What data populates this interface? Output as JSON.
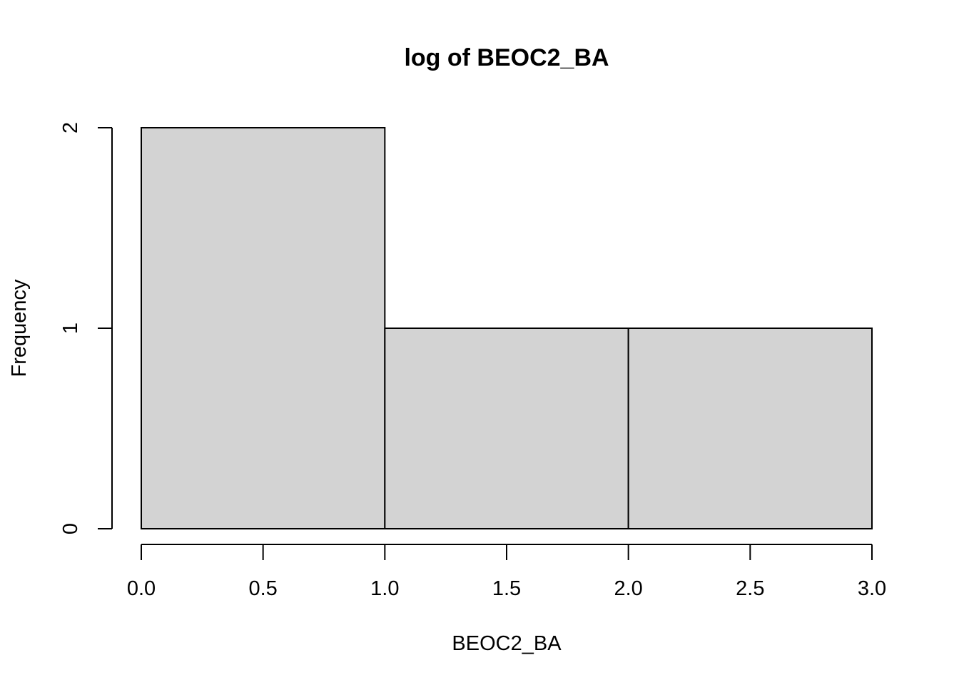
{
  "chart_data": {
    "type": "bar",
    "title": "log of BEOC2_BA",
    "xlabel": "BEOC2_BA",
    "ylabel": "Frequency",
    "bins": [
      {
        "x0": 0,
        "x1": 1,
        "value": 2
      },
      {
        "x0": 1,
        "x1": 2,
        "value": 1
      },
      {
        "x0": 2,
        "x1": 3,
        "value": 1
      }
    ],
    "xlim": [
      0,
      3
    ],
    "ylim": [
      0,
      2
    ],
    "x_ticks": [
      0,
      0.5,
      1,
      1.5,
      2,
      2.5,
      3
    ],
    "x_tick_labels": [
      "0.0",
      "0.5",
      "1.0",
      "1.5",
      "2.0",
      "2.5",
      "3.0"
    ],
    "y_ticks": [
      0,
      1,
      2
    ],
    "y_tick_labels": [
      "0",
      "1",
      "2"
    ],
    "grid": false,
    "bar_color": "#d3d3d3",
    "edge_color": "#000000"
  }
}
